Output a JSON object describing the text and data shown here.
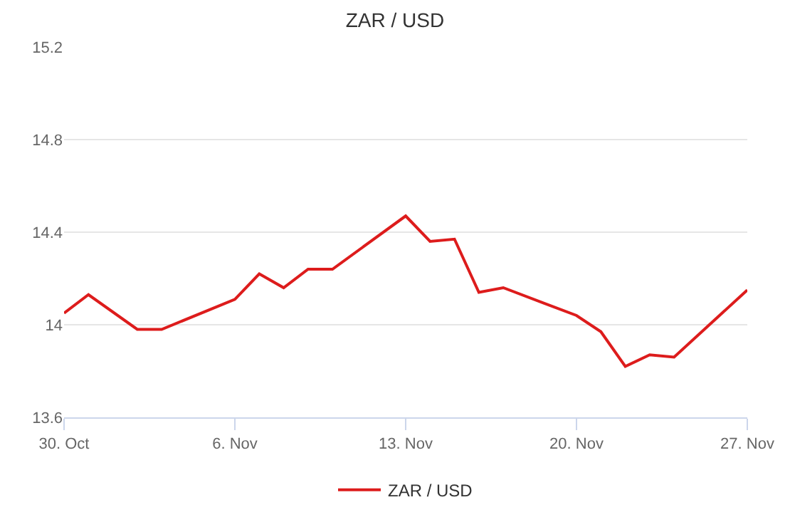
{
  "chart_data": {
    "type": "line",
    "title": "ZAR / USD",
    "x": [
      "--10-30",
      "--10-31",
      "--11-02",
      "--11-03",
      "--11-06",
      "--11-07",
      "--11-08",
      "--11-09",
      "--11-10",
      "--11-13",
      "--11-14",
      "--11-15",
      "--11-16",
      "--11-17",
      "--11-20",
      "--11-21",
      "--11-22",
      "--11-23",
      "--11-24",
      "--11-27"
    ],
    "series": [
      {
        "name": "ZAR / USD",
        "color": "#dd1c1c",
        "values": [
          14.05,
          14.13,
          13.98,
          13.98,
          14.11,
          14.22,
          14.16,
          14.24,
          14.24,
          14.47,
          14.36,
          14.37,
          14.14,
          14.16,
          14.04,
          13.97,
          13.82,
          13.87,
          13.86,
          14.15
        ]
      }
    ],
    "xlim": [
      "--10-30",
      "--11-27"
    ],
    "xticks": [
      {
        "value": "--10-30",
        "label": "30. Oct"
      },
      {
        "value": "--11-06",
        "label": "6. Nov"
      },
      {
        "value": "--11-13",
        "label": "13. Nov"
      },
      {
        "value": "--11-20",
        "label": "20. Nov"
      },
      {
        "value": "--11-27",
        "label": "27. Nov"
      }
    ],
    "ylim": [
      13.6,
      15.2
    ],
    "yticks": [
      13.6,
      14.0,
      14.4,
      14.8,
      15.2
    ],
    "grid": "y",
    "legend": "bottom",
    "marker": "none",
    "line_style": "solid"
  }
}
